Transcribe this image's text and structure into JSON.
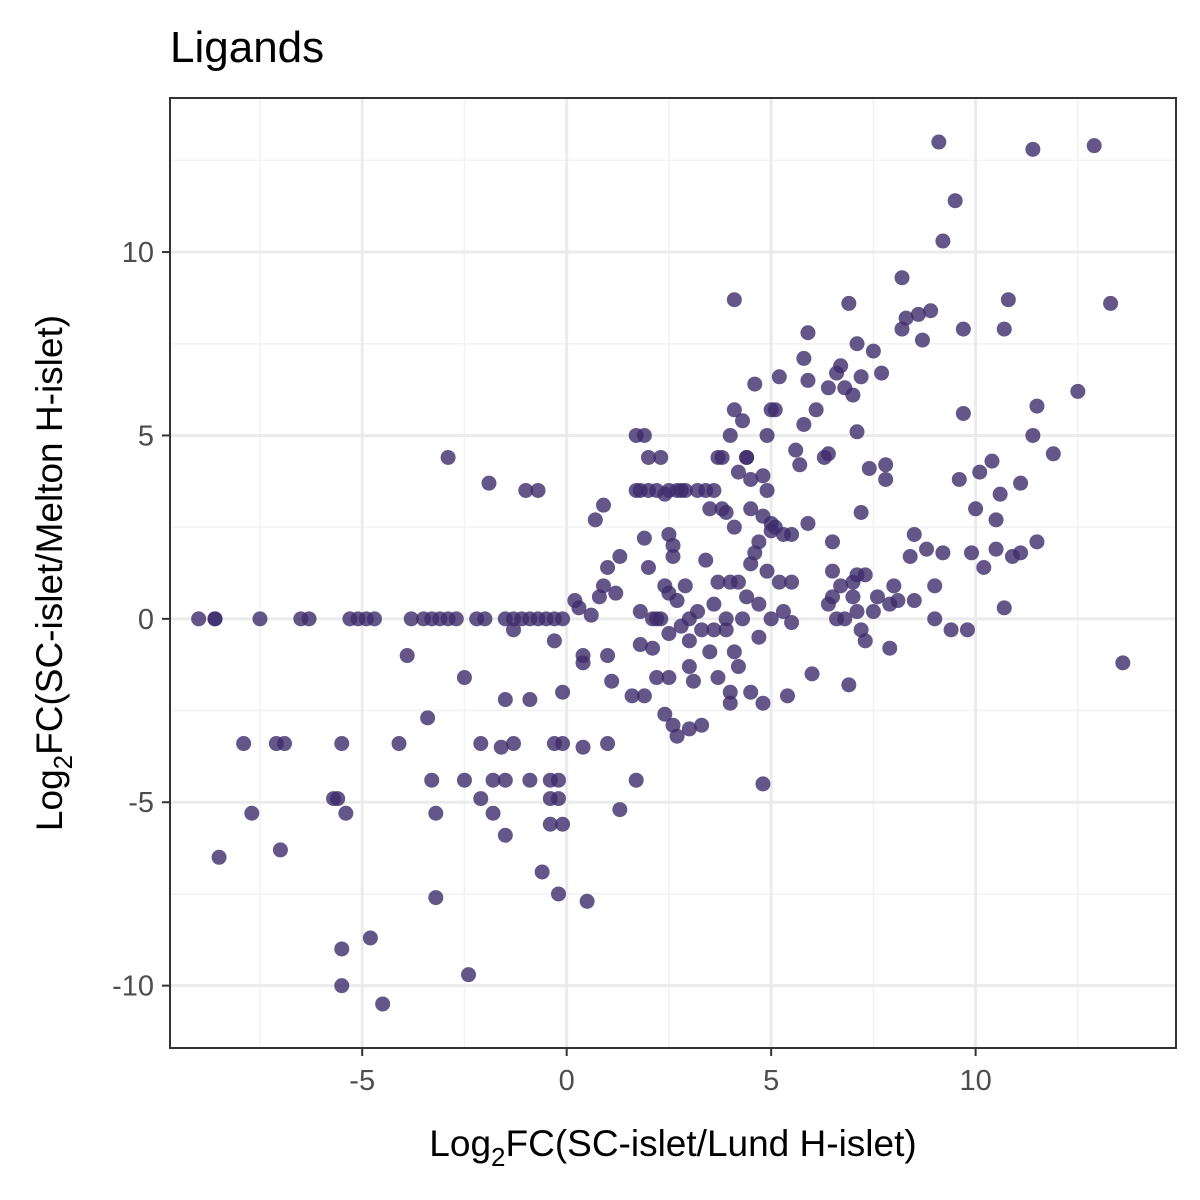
{
  "chart_data": {
    "type": "scatter",
    "title": "Ligands",
    "xlabel": {
      "prefix": "Log",
      "sub": "2",
      "suffix": "FC(SC-islet/Lund H-islet)"
    },
    "ylabel": {
      "prefix": "Log",
      "sub": "2",
      "suffix": "FC(SC-islet/Melton H-islet)"
    },
    "xlim": [
      -9.7,
      14.9
    ],
    "ylim": [
      -11.7,
      14.2
    ],
    "x_ticks": [
      -5,
      0,
      5,
      10
    ],
    "y_ticks": [
      -10,
      -5,
      0,
      5,
      10
    ],
    "x_tick_labels": [
      "-5",
      "0",
      "5",
      "10"
    ],
    "y_tick_labels": [
      "-10",
      "-5",
      "0",
      "5",
      "10"
    ],
    "grid": true,
    "point_color": "#3d2c6b",
    "points": [
      [
        -8.6,
        0
      ],
      [
        -7.5,
        0
      ],
      [
        -6.5,
        0
      ],
      [
        -6.3,
        0
      ],
      [
        -5.3,
        0
      ],
      [
        -5.1,
        0
      ],
      [
        -4.9,
        0
      ],
      [
        -4.7,
        0
      ],
      [
        -3.8,
        0
      ],
      [
        -3.5,
        0
      ],
      [
        -3.3,
        0
      ],
      [
        -3.1,
        0
      ],
      [
        -2.9,
        0
      ],
      [
        -2.7,
        0
      ],
      [
        -2.2,
        0
      ],
      [
        -2.0,
        0
      ],
      [
        -1.5,
        0
      ],
      [
        -1.3,
        0
      ],
      [
        -1.1,
        0
      ],
      [
        -0.9,
        0
      ],
      [
        -0.7,
        0
      ],
      [
        -0.5,
        0
      ],
      [
        -0.3,
        0
      ],
      [
        -0.1,
        0
      ],
      [
        -1.3,
        -0.3
      ],
      [
        -0.3,
        -0.6
      ],
      [
        -9.0,
        0
      ],
      [
        -8.6,
        0
      ],
      [
        -3.9,
        -1.0
      ],
      [
        -2.9,
        4.4
      ],
      [
        -1.9,
        3.7
      ],
      [
        -1.0,
        3.5
      ],
      [
        -0.7,
        3.5
      ],
      [
        -2.5,
        -1.6
      ],
      [
        -1.5,
        -2.2
      ],
      [
        -0.9,
        -2.2
      ],
      [
        -0.1,
        -2.0
      ],
      [
        -7.9,
        -3.4
      ],
      [
        -7.1,
        -3.4
      ],
      [
        -6.9,
        -3.4
      ],
      [
        -5.5,
        -3.4
      ],
      [
        -4.1,
        -3.4
      ],
      [
        -2.1,
        -3.4
      ],
      [
        -1.6,
        -3.5
      ],
      [
        -1.3,
        -3.4
      ],
      [
        -0.3,
        -3.4
      ],
      [
        -0.1,
        -3.4
      ],
      [
        0.4,
        -3.5
      ],
      [
        1.0,
        -3.4
      ],
      [
        -3.4,
        -2.7
      ],
      [
        -3.3,
        -4.4
      ],
      [
        -2.5,
        -4.4
      ],
      [
        -1.8,
        -4.4
      ],
      [
        -1.5,
        -4.4
      ],
      [
        -0.9,
        -4.4
      ],
      [
        -0.4,
        -4.4
      ],
      [
        -0.2,
        -4.4
      ],
      [
        1.7,
        -4.4
      ],
      [
        -5.7,
        -4.9
      ],
      [
        -5.6,
        -4.9
      ],
      [
        -2.1,
        -4.9
      ],
      [
        -0.4,
        -4.9
      ],
      [
        -0.2,
        -4.9
      ],
      [
        -7.7,
        -5.3
      ],
      [
        -5.4,
        -5.3
      ],
      [
        -3.2,
        -5.3
      ],
      [
        -1.8,
        -5.3
      ],
      [
        -1.5,
        -5.9
      ],
      [
        -0.4,
        -5.6
      ],
      [
        -0.1,
        -5.6
      ],
      [
        1.3,
        -5.2
      ],
      [
        -8.5,
        -6.5
      ],
      [
        -7.0,
        -6.3
      ],
      [
        -3.2,
        -7.6
      ],
      [
        -0.6,
        -6.9
      ],
      [
        -0.2,
        -7.5
      ],
      [
        0.5,
        -7.7
      ],
      [
        -5.5,
        -9.0
      ],
      [
        -4.8,
        -8.7
      ],
      [
        -5.5,
        -10.0
      ],
      [
        -4.5,
        -10.5
      ],
      [
        -2.4,
        -9.7
      ],
      [
        0.2,
        0.5
      ],
      [
        0.3,
        0.3
      ],
      [
        0.4,
        -1.0
      ],
      [
        0.4,
        -1.2
      ],
      [
        0.6,
        0.1
      ],
      [
        0.7,
        2.7
      ],
      [
        0.8,
        0.6
      ],
      [
        0.9,
        0.9
      ],
      [
        0.9,
        3.1
      ],
      [
        1.0,
        1.4
      ],
      [
        1.0,
        -1.0
      ],
      [
        1.1,
        -1.7
      ],
      [
        1.2,
        0.7
      ],
      [
        1.3,
        1.7
      ],
      [
        1.6,
        -2.1
      ],
      [
        1.7,
        3.5
      ],
      [
        1.8,
        3.5
      ],
      [
        1.8,
        0.2
      ],
      [
        1.8,
        -0.7
      ],
      [
        1.9,
        -2.1
      ],
      [
        1.9,
        2.2
      ],
      [
        2.0,
        1.4
      ],
      [
        2.0,
        3.5
      ],
      [
        2.0,
        4.4
      ],
      [
        2.1,
        -0.8
      ],
      [
        2.1,
        0.0
      ],
      [
        2.2,
        0.0
      ],
      [
        2.2,
        -1.6
      ],
      [
        2.2,
        3.5
      ],
      [
        2.3,
        4.4
      ],
      [
        2.3,
        0.0
      ],
      [
        2.4,
        0.9
      ],
      [
        1.7,
        5.0
      ],
      [
        1.9,
        5.0
      ],
      [
        2.4,
        3.4
      ],
      [
        2.4,
        -2.6
      ],
      [
        2.5,
        -0.4
      ],
      [
        2.5,
        0.7
      ],
      [
        2.5,
        -1.6
      ],
      [
        2.5,
        2.3
      ],
      [
        2.5,
        3.5
      ],
      [
        2.6,
        -2.9
      ],
      [
        2.6,
        2.0
      ],
      [
        2.6,
        1.7
      ],
      [
        2.7,
        3.5
      ],
      [
        2.7,
        0.5
      ],
      [
        2.7,
        -3.2
      ],
      [
        2.8,
        -0.2
      ],
      [
        2.8,
        3.5
      ],
      [
        2.9,
        0.9
      ],
      [
        2.9,
        3.5
      ],
      [
        3.0,
        0.0
      ],
      [
        3.0,
        -0.6
      ],
      [
        3.0,
        -1.3
      ],
      [
        3.0,
        -3.0
      ],
      [
        3.1,
        -1.7
      ],
      [
        3.2,
        3.5
      ],
      [
        3.2,
        0.2
      ],
      [
        3.3,
        -0.3
      ],
      [
        3.3,
        -2.9
      ],
      [
        3.4,
        1.6
      ],
      [
        3.4,
        3.5
      ],
      [
        3.5,
        3.0
      ],
      [
        3.5,
        -0.9
      ],
      [
        3.6,
        3.5
      ],
      [
        3.6,
        -0.3
      ],
      [
        3.6,
        0.4
      ],
      [
        3.7,
        1.0
      ],
      [
        3.7,
        4.4
      ],
      [
        3.7,
        -1.6
      ],
      [
        3.8,
        3.0
      ],
      [
        3.8,
        4.4
      ],
      [
        3.9,
        0.0
      ],
      [
        3.9,
        -0.3
      ],
      [
        3.9,
        2.9
      ],
      [
        4.0,
        -2.0
      ],
      [
        4.0,
        5.0
      ],
      [
        4.0,
        -2.3
      ],
      [
        4.0,
        1.0
      ],
      [
        4.1,
        2.5
      ],
      [
        4.1,
        -0.9
      ],
      [
        4.1,
        5.7
      ],
      [
        4.2,
        1.0
      ],
      [
        4.2,
        -1.3
      ],
      [
        4.2,
        4.0
      ],
      [
        4.3,
        5.4
      ],
      [
        4.3,
        0.0
      ],
      [
        4.4,
        4.4
      ],
      [
        4.4,
        4.4
      ],
      [
        4.4,
        0.6
      ],
      [
        4.5,
        -2.0
      ],
      [
        4.5,
        3.8
      ],
      [
        4.5,
        1.5
      ],
      [
        4.5,
        3.0
      ],
      [
        4.6,
        6.4
      ],
      [
        4.6,
        1.8
      ],
      [
        4.7,
        2.1
      ],
      [
        4.7,
        0.4
      ],
      [
        4.7,
        -0.5
      ],
      [
        4.8,
        3.9
      ],
      [
        4.8,
        2.8
      ],
      [
        4.8,
        -4.5
      ],
      [
        4.8,
        -2.3
      ],
      [
        4.9,
        5.0
      ],
      [
        4.9,
        3.5
      ],
      [
        4.9,
        1.3
      ],
      [
        5.0,
        5.7
      ],
      [
        5.0,
        2.4
      ],
      [
        5.0,
        0.0
      ],
      [
        5.0,
        2.6
      ],
      [
        5.1,
        5.7
      ],
      [
        5.1,
        2.5
      ],
      [
        5.2,
        1.0
      ],
      [
        5.2,
        6.6
      ],
      [
        5.3,
        0.2
      ],
      [
        5.3,
        2.3
      ],
      [
        5.4,
        -2.1
      ],
      [
        5.5,
        2.3
      ],
      [
        5.5,
        1.0
      ],
      [
        5.5,
        -0.1
      ],
      [
        5.6,
        4.6
      ],
      [
        5.7,
        4.2
      ],
      [
        5.8,
        5.3
      ],
      [
        5.8,
        7.1
      ],
      [
        5.9,
        7.8
      ],
      [
        5.9,
        6.5
      ],
      [
        5.9,
        2.6
      ],
      [
        6.0,
        -1.5
      ],
      [
        6.1,
        5.7
      ],
      [
        6.3,
        4.4
      ],
      [
        6.4,
        0.4
      ],
      [
        6.4,
        4.5
      ],
      [
        6.4,
        6.3
      ],
      [
        6.5,
        2.1
      ],
      [
        6.5,
        0.6
      ],
      [
        6.5,
        1.3
      ],
      [
        6.6,
        0.0
      ],
      [
        6.6,
        6.7
      ],
      [
        6.7,
        6.9
      ],
      [
        6.7,
        0.9
      ],
      [
        6.8,
        6.3
      ],
      [
        6.8,
        0.0
      ],
      [
        6.9,
        8.6
      ],
      [
        6.9,
        -1.8
      ],
      [
        7.0,
        0.6
      ],
      [
        7.0,
        6.1
      ],
      [
        7.0,
        1.0
      ],
      [
        7.1,
        7.5
      ],
      [
        7.1,
        0.2
      ],
      [
        7.1,
        5.1
      ],
      [
        7.1,
        1.2
      ],
      [
        7.2,
        -0.3
      ],
      [
        7.2,
        6.6
      ],
      [
        7.2,
        2.9
      ],
      [
        7.3,
        -0.6
      ],
      [
        7.3,
        1.2
      ],
      [
        7.4,
        4.1
      ],
      [
        7.5,
        7.3
      ],
      [
        7.5,
        0.2
      ],
      [
        7.6,
        0.6
      ],
      [
        7.7,
        6.7
      ],
      [
        7.8,
        4.2
      ],
      [
        7.8,
        3.8
      ],
      [
        7.9,
        0.4
      ],
      [
        7.9,
        -0.8
      ],
      [
        8.0,
        0.9
      ],
      [
        8.1,
        0.5
      ],
      [
        8.2,
        7.9
      ],
      [
        8.2,
        9.3
      ],
      [
        8.3,
        8.2
      ],
      [
        8.4,
        1.7
      ],
      [
        8.5,
        0.5
      ],
      [
        8.5,
        2.3
      ],
      [
        8.6,
        8.3
      ],
      [
        8.7,
        7.6
      ],
      [
        8.8,
        1.9
      ],
      [
        8.9,
        8.4
      ],
      [
        9.0,
        0.9
      ],
      [
        9.0,
        0.0
      ],
      [
        9.2,
        1.8
      ],
      [
        9.2,
        10.3
      ],
      [
        9.5,
        11.4
      ],
      [
        9.6,
        3.8
      ],
      [
        9.7,
        7.9
      ],
      [
        9.7,
        5.6
      ],
      [
        9.8,
        -0.3
      ],
      [
        9.9,
        1.8
      ],
      [
        10.0,
        3.0
      ],
      [
        10.1,
        4.0
      ],
      [
        10.2,
        1.4
      ],
      [
        10.4,
        4.3
      ],
      [
        10.5,
        2.7
      ],
      [
        10.5,
        1.9
      ],
      [
        10.6,
        3.4
      ],
      [
        10.7,
        0.3
      ],
      [
        10.7,
        7.9
      ],
      [
        10.8,
        8.7
      ],
      [
        10.9,
        1.7
      ],
      [
        11.1,
        3.7
      ],
      [
        11.1,
        1.8
      ],
      [
        11.5,
        2.1
      ],
      [
        11.5,
        5.8
      ],
      [
        11.4,
        5.0
      ],
      [
        11.9,
        4.5
      ],
      [
        12.5,
        6.2
      ],
      [
        4.1,
        8.7
      ],
      [
        9.1,
        13.0
      ],
      [
        11.4,
        12.8
      ],
      [
        12.9,
        12.9
      ],
      [
        13.3,
        8.6
      ],
      [
        13.6,
        -1.2
      ],
      [
        9.4,
        -0.3
      ]
    ]
  }
}
